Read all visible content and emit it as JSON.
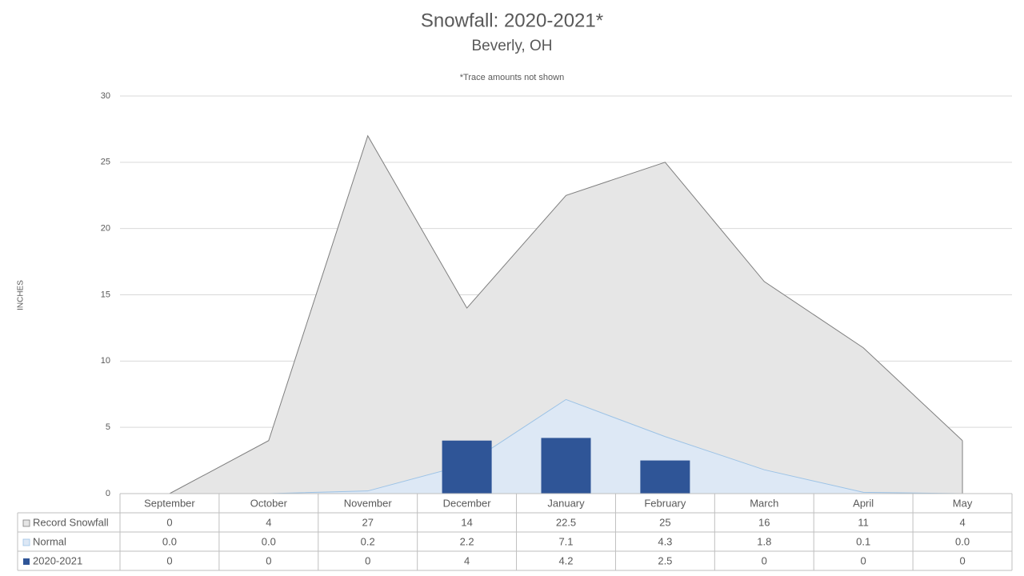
{
  "chart_data": {
    "type": "area-bar-table",
    "title": "Snowfall: 2020-2021*",
    "subtitle": "Beverly, OH",
    "annotation": "*Trace amounts not shown",
    "y_label": "INCHES",
    "categories": [
      "September",
      "October",
      "November",
      "December",
      "January",
      "February",
      "March",
      "April",
      "May"
    ],
    "series": [
      {
        "name": "Record Snowfall",
        "kind": "area",
        "color": "#e6e6e6",
        "stroke": "#7f7f7f",
        "values": [
          0,
          4,
          27,
          14,
          22.5,
          25,
          16,
          11,
          4
        ]
      },
      {
        "name": "Normal",
        "kind": "area",
        "color": "#dde8f5",
        "stroke": "#9dc3e6",
        "values": [
          0,
          0,
          0.2,
          2.2,
          7.1,
          4.3,
          1.8,
          0.1,
          0
        ],
        "value_labels": [
          "0.0",
          "0.0",
          "0.2",
          "2.2",
          "7.1",
          "4.3",
          "1.8",
          "0.1",
          "0.0"
        ]
      },
      {
        "name": "2020-2021",
        "kind": "bar",
        "color": "#2f5597",
        "values": [
          0,
          0,
          0,
          4,
          4.2,
          2.5,
          0,
          0,
          0
        ]
      }
    ],
    "ylim": [
      0,
      30
    ],
    "yticks": [
      0,
      5,
      10,
      15,
      20,
      25,
      30
    ],
    "grid": true
  }
}
